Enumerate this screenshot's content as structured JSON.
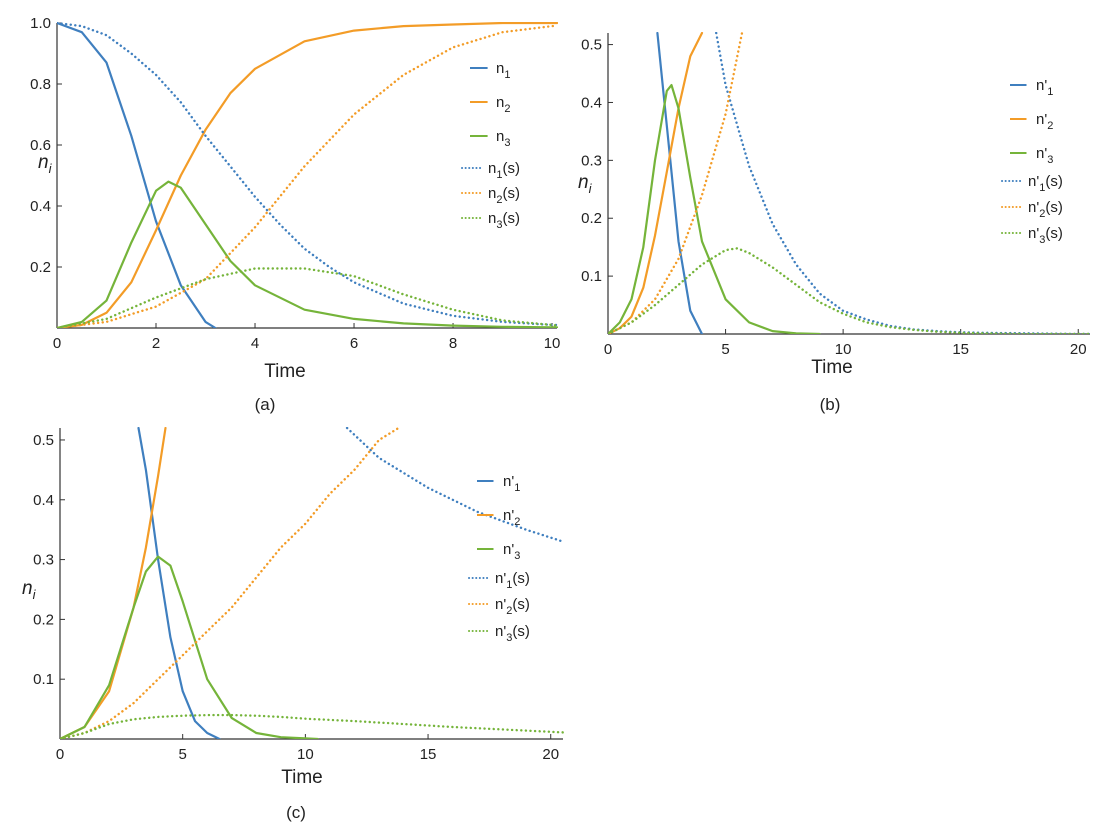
{
  "colors": {
    "blue": "#3F7FBF",
    "orange": "#F39C27",
    "green": "#75B43A",
    "axis": "#333333"
  },
  "chart_data": [
    {
      "panel": "a",
      "caption": "(a)",
      "type": "line",
      "xlabel": "Time",
      "ylabel": "n",
      "ylabel_sub": "i",
      "xlim": [
        0,
        10.1
      ],
      "ylim": [
        0,
        1.0
      ],
      "xticks": [
        0,
        2,
        4,
        6,
        8,
        10
      ],
      "xtick_labels": [
        "0",
        "2",
        "4",
        "6",
        "8",
        "10"
      ],
      "yticks": [
        0.2,
        0.4,
        0.6,
        0.8,
        1.0
      ],
      "ytick_labels": [
        "0.2",
        "0.4",
        "0.6",
        "0.8",
        "1.0"
      ],
      "legend_position": "right",
      "series": [
        {
          "name": "n",
          "sub": "1",
          "color": "blue",
          "style": "solid",
          "x": [
            0,
            0.5,
            1,
            1.5,
            2,
            2.5,
            3,
            3.2
          ],
          "y": [
            1.0,
            0.97,
            0.87,
            0.63,
            0.35,
            0.14,
            0.02,
            0.0
          ]
        },
        {
          "name": "n",
          "sub": "2",
          "color": "orange",
          "style": "solid",
          "x": [
            0,
            0.5,
            1,
            1.5,
            2,
            2.5,
            3,
            3.5,
            4,
            5,
            6,
            7,
            8,
            9,
            10,
            10.1
          ],
          "y": [
            0,
            0.01,
            0.05,
            0.15,
            0.32,
            0.5,
            0.65,
            0.77,
            0.85,
            0.94,
            0.975,
            0.99,
            0.995,
            1.0,
            1.0,
            1.0
          ]
        },
        {
          "name": "n",
          "sub": "3",
          "color": "green",
          "style": "solid",
          "x": [
            0,
            0.5,
            1,
            1.5,
            2,
            2.25,
            2.5,
            3,
            3.5,
            4,
            5,
            6,
            7,
            8,
            9,
            10,
            10.1
          ],
          "y": [
            0,
            0.02,
            0.09,
            0.28,
            0.45,
            0.48,
            0.46,
            0.34,
            0.22,
            0.14,
            0.06,
            0.03,
            0.015,
            0.008,
            0.004,
            0.002,
            0.002
          ]
        },
        {
          "name": "n",
          "sub": "1",
          "suffix": "(s)",
          "color": "blue",
          "style": "dotted",
          "x": [
            0,
            0.5,
            1,
            1.5,
            2,
            2.5,
            3,
            3.5,
            4,
            4.5,
            5,
            5.5,
            6,
            7,
            8,
            9,
            10,
            10.1
          ],
          "y": [
            1.0,
            0.99,
            0.96,
            0.9,
            0.83,
            0.74,
            0.63,
            0.53,
            0.43,
            0.34,
            0.26,
            0.2,
            0.15,
            0.08,
            0.04,
            0.02,
            0.01,
            0.01
          ]
        },
        {
          "name": "n",
          "sub": "2",
          "suffix": "(s)",
          "color": "orange",
          "style": "dotted",
          "x": [
            0,
            1,
            2,
            3,
            4,
            5,
            6,
            7,
            8,
            9,
            10,
            10.1
          ],
          "y": [
            0,
            0.02,
            0.07,
            0.16,
            0.33,
            0.53,
            0.7,
            0.83,
            0.92,
            0.97,
            0.99,
            0.99
          ]
        },
        {
          "name": "n",
          "sub": "3",
          "suffix": "(s)",
          "color": "green",
          "style": "dotted",
          "x": [
            0,
            1,
            2,
            3,
            4,
            5,
            6,
            7,
            8,
            9,
            10,
            10.1
          ],
          "y": [
            0,
            0.03,
            0.1,
            0.16,
            0.195,
            0.195,
            0.17,
            0.11,
            0.06,
            0.025,
            0.01,
            0.008
          ]
        }
      ]
    },
    {
      "panel": "b",
      "caption": "(b)",
      "type": "line",
      "xlabel": "Time",
      "ylabel": "n",
      "ylabel_sub": "i",
      "xlim": [
        0,
        20.5
      ],
      "ylim": [
        0,
        0.52
      ],
      "xticks": [
        0,
        5,
        10,
        15,
        20
      ],
      "xtick_labels": [
        "0",
        "5",
        "10",
        "15",
        "20"
      ],
      "yticks": [
        0.1,
        0.2,
        0.3,
        0.4,
        0.5
      ],
      "ytick_labels": [
        "0.1",
        "0.2",
        "0.3",
        "0.4",
        "0.5"
      ],
      "legend_position": "right",
      "series": [
        {
          "name": "n'",
          "sub": "1",
          "color": "blue",
          "style": "solid",
          "x": [
            2.1,
            2.5,
            3,
            3.5,
            4
          ],
          "y": [
            0.52,
            0.36,
            0.16,
            0.04,
            0.0
          ]
        },
        {
          "name": "n'",
          "sub": "2",
          "color": "orange",
          "style": "solid",
          "x": [
            0,
            0.5,
            1,
            1.5,
            2,
            2.5,
            3,
            3.5,
            4.0
          ],
          "y": [
            0,
            0.01,
            0.03,
            0.08,
            0.17,
            0.28,
            0.39,
            0.48,
            0.52
          ]
        },
        {
          "name": "n'",
          "sub": "3",
          "color": "green",
          "style": "solid",
          "x": [
            0,
            0.5,
            1,
            1.5,
            2,
            2.5,
            2.7,
            3,
            3.5,
            4,
            5,
            6,
            7,
            8,
            9
          ],
          "y": [
            0,
            0.02,
            0.06,
            0.15,
            0.3,
            0.42,
            0.43,
            0.39,
            0.27,
            0.16,
            0.06,
            0.02,
            0.005,
            0.001,
            0.0
          ]
        },
        {
          "name": "n'",
          "sub": "1",
          "suffix": "(s)",
          "color": "blue",
          "style": "dotted",
          "x": [
            4.6,
            5,
            6,
            7,
            8,
            9,
            10,
            11,
            12,
            13,
            14,
            15,
            16,
            18,
            20,
            20.5
          ],
          "y": [
            0.52,
            0.43,
            0.29,
            0.19,
            0.12,
            0.07,
            0.04,
            0.025,
            0.014,
            0.008,
            0.005,
            0.003,
            0.002,
            0.001,
            0.0,
            0.0
          ]
        },
        {
          "name": "n'",
          "sub": "2",
          "suffix": "(s)",
          "color": "orange",
          "style": "dotted",
          "x": [
            0,
            1,
            2,
            3,
            4,
            5,
            5.7
          ],
          "y": [
            0,
            0.02,
            0.06,
            0.13,
            0.24,
            0.38,
            0.52
          ]
        },
        {
          "name": "n'",
          "sub": "3",
          "suffix": "(s)",
          "color": "green",
          "style": "dotted",
          "x": [
            0,
            1,
            2,
            3,
            4,
            5,
            5.5,
            6,
            7,
            8,
            9,
            10,
            11,
            12,
            13,
            14,
            15,
            16,
            18,
            20,
            20.5
          ],
          "y": [
            0,
            0.02,
            0.05,
            0.085,
            0.12,
            0.145,
            0.148,
            0.14,
            0.115,
            0.085,
            0.055,
            0.035,
            0.02,
            0.012,
            0.007,
            0.004,
            0.002,
            0.001,
            0.0,
            0.0,
            0.0
          ]
        }
      ]
    },
    {
      "panel": "c",
      "caption": "(c)",
      "type": "line",
      "xlabel": "Time",
      "ylabel": "n",
      "ylabel_sub": "i",
      "xlim": [
        0,
        20.5
      ],
      "ylim": [
        0,
        0.52
      ],
      "xticks": [
        0,
        5,
        10,
        15,
        20
      ],
      "xtick_labels": [
        "0",
        "5",
        "10",
        "15",
        "20"
      ],
      "yticks": [
        0.1,
        0.2,
        0.3,
        0.4,
        0.5
      ],
      "ytick_labels": [
        "0.1",
        "0.2",
        "0.3",
        "0.4",
        "0.5"
      ],
      "legend_position": "right",
      "series": [
        {
          "name": "n'",
          "sub": "1",
          "color": "blue",
          "style": "solid",
          "x": [
            3.2,
            3.5,
            4,
            4.5,
            5,
            5.5,
            6,
            6.5
          ],
          "y": [
            0.52,
            0.45,
            0.3,
            0.17,
            0.08,
            0.03,
            0.01,
            0.0
          ]
        },
        {
          "name": "n'",
          "sub": "2",
          "color": "orange",
          "style": "solid",
          "x": [
            0,
            1,
            2,
            3,
            3.5,
            4,
            4.3
          ],
          "y": [
            0,
            0.02,
            0.08,
            0.22,
            0.32,
            0.44,
            0.52
          ]
        },
        {
          "name": "n'",
          "sub": "3",
          "color": "green",
          "style": "solid",
          "x": [
            0,
            1,
            2,
            3,
            3.5,
            4,
            4.5,
            5,
            6,
            7,
            8,
            9,
            10,
            10.5
          ],
          "y": [
            0,
            0.02,
            0.09,
            0.22,
            0.28,
            0.305,
            0.29,
            0.23,
            0.1,
            0.035,
            0.01,
            0.003,
            0.001,
            0.0
          ]
        },
        {
          "name": "n'",
          "sub": "1",
          "suffix": "(s)",
          "color": "blue",
          "style": "dotted",
          "x": [
            11.7,
            13,
            15,
            17,
            19,
            20.5
          ],
          "y": [
            0.52,
            0.47,
            0.42,
            0.38,
            0.35,
            0.33
          ]
        },
        {
          "name": "n'",
          "sub": "2",
          "suffix": "(s)",
          "color": "orange",
          "style": "dotted",
          "x": [
            0,
            1,
            2,
            3,
            4,
            5,
            6,
            7,
            8,
            9,
            10,
            11,
            12,
            13,
            13.8
          ],
          "y": [
            0,
            0.01,
            0.03,
            0.06,
            0.1,
            0.14,
            0.18,
            0.22,
            0.27,
            0.32,
            0.36,
            0.41,
            0.45,
            0.5,
            0.52
          ]
        },
        {
          "name": "n'",
          "sub": "3",
          "suffix": "(s)",
          "color": "green",
          "style": "dotted",
          "x": [
            0,
            1,
            2,
            3,
            4,
            5,
            6,
            7,
            8,
            9,
            10,
            12,
            14,
            16,
            18,
            20,
            20.5
          ],
          "y": [
            0,
            0.01,
            0.025,
            0.033,
            0.037,
            0.039,
            0.04,
            0.04,
            0.039,
            0.037,
            0.034,
            0.03,
            0.025,
            0.02,
            0.016,
            0.012,
            0.011
          ]
        }
      ]
    }
  ]
}
